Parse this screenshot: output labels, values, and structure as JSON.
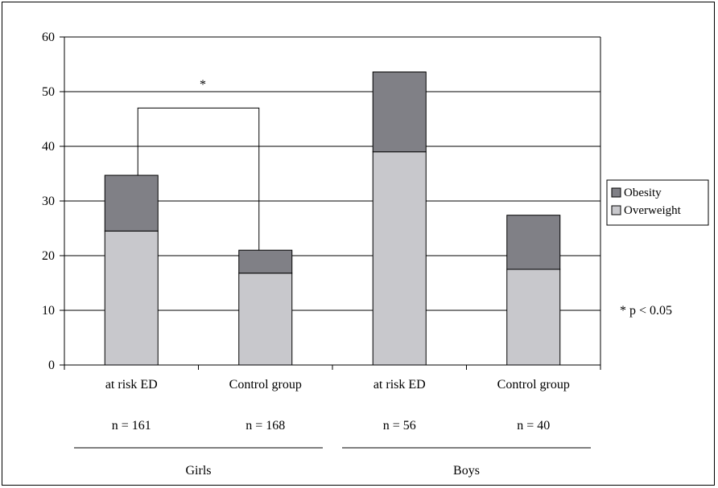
{
  "chart_data": {
    "type": "bar",
    "stacked": true,
    "categories": [
      "at risk ED",
      "Control group",
      "at risk ED",
      "Control group"
    ],
    "sample_sizes": [
      "n = 161",
      "n = 168",
      "n = 56",
      "n = 40"
    ],
    "groups": [
      {
        "label": "Girls",
        "categories": [
          0,
          1
        ]
      },
      {
        "label": "Boys",
        "categories": [
          2,
          3
        ]
      }
    ],
    "series": [
      {
        "name": "Overweight",
        "values": [
          24.5,
          16.8,
          39.0,
          17.5
        ],
        "color": "#c8c8cc"
      },
      {
        "name": "Obesity",
        "values": [
          10.2,
          4.2,
          14.6,
          9.9
        ],
        "color": "#808086"
      }
    ],
    "legend_order": [
      "Obesity",
      "Overweight"
    ],
    "legend_position": "right",
    "ylim": [
      0,
      60
    ],
    "yticks": [
      0,
      10,
      20,
      30,
      40,
      50,
      60
    ],
    "grid": true,
    "annotations": {
      "bracket_star": "*",
      "bracket_between": [
        0,
        1
      ],
      "bracket_y": 47,
      "note": "* p < 0.05"
    }
  }
}
